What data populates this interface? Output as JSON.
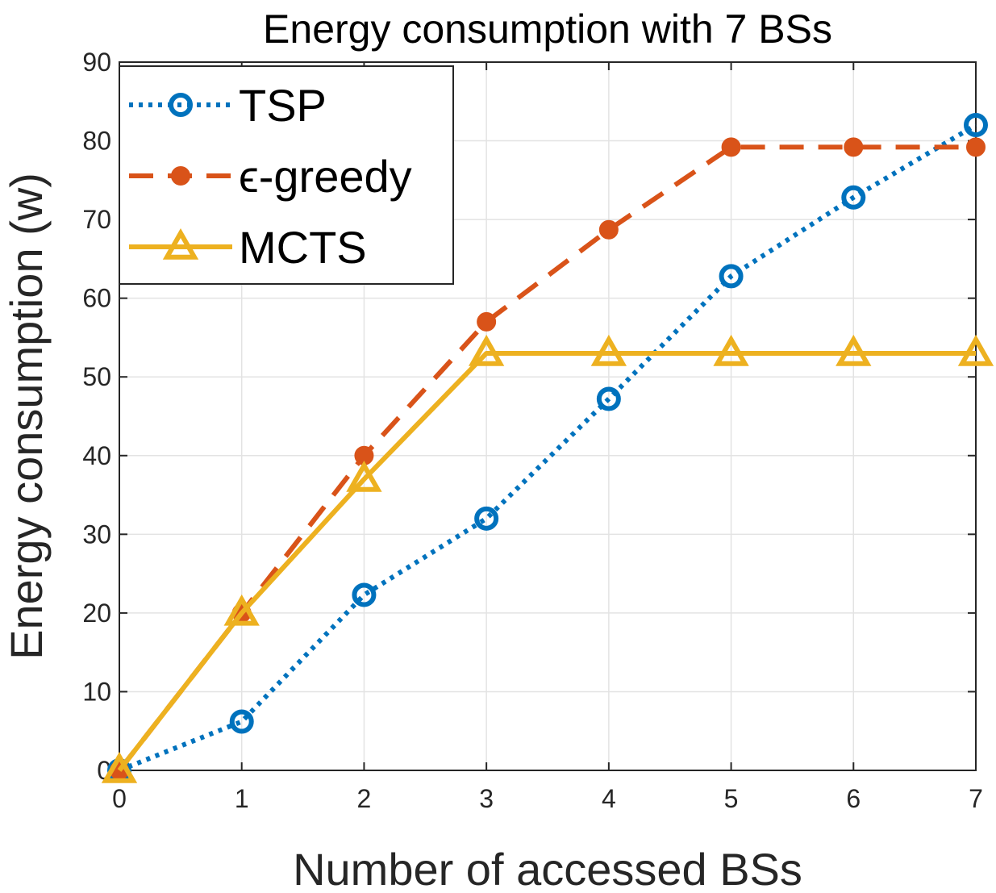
{
  "chart_data": {
    "type": "line",
    "title": "Energy consumption with 7 BSs",
    "xlabel": "Number of accessed BSs",
    "ylabel": "Energy consumption (w)",
    "x": [
      0,
      1,
      2,
      3,
      4,
      5,
      6,
      7
    ],
    "xlim": [
      0,
      7
    ],
    "ylim": [
      0,
      90
    ],
    "xticks": [
      "0",
      "1",
      "2",
      "3",
      "4",
      "5",
      "6",
      "7"
    ],
    "yticks": [
      "0",
      "10",
      "20",
      "30",
      "40",
      "50",
      "60",
      "70",
      "80",
      "90"
    ],
    "grid": true,
    "legend_position": "top-left",
    "series": [
      {
        "name": "TSP",
        "color": "#0072BD",
        "line_style": "dotted",
        "marker": "circle",
        "values": [
          0,
          6.2,
          22.3,
          32,
          47.2,
          62.8,
          72.8,
          82
        ]
      },
      {
        "name": "ϵ-greedy",
        "color": "#D95319",
        "line_style": "dashed",
        "marker": "dot",
        "values": [
          0,
          20,
          40,
          57,
          68.7,
          79.2,
          79.2,
          79.2
        ]
      },
      {
        "name": "MCTS",
        "color": "#EDB120",
        "line_style": "solid",
        "marker": "triangle",
        "values": [
          0,
          20,
          37,
          53,
          53,
          53,
          53,
          53
        ]
      }
    ]
  }
}
